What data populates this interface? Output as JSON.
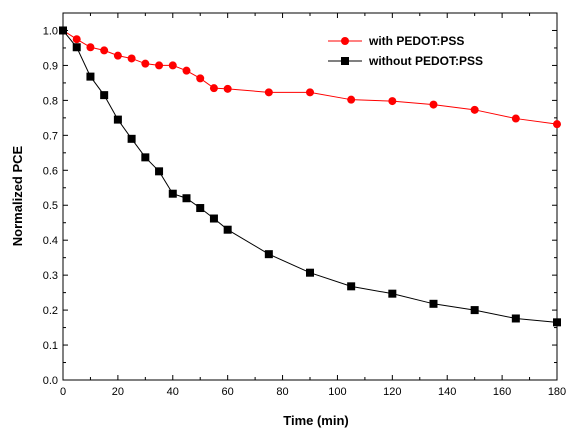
{
  "chart_data": {
    "type": "line",
    "xlabel": "Time (min)",
    "ylabel": "Normalized PCE",
    "xlim": [
      0,
      180
    ],
    "ylim": [
      0.0,
      1.05
    ],
    "xticks": [
      0,
      20,
      40,
      60,
      80,
      100,
      120,
      140,
      160,
      180
    ],
    "yticks": [
      0.0,
      0.1,
      0.2,
      0.3,
      0.4,
      0.5,
      0.6,
      0.7,
      0.8,
      0.9,
      1.0
    ],
    "xtick_labels": [
      "0",
      "20",
      "40",
      "60",
      "80",
      "100",
      "120",
      "140",
      "160",
      "180"
    ],
    "ytick_labels": [
      "0.0",
      "0.1",
      "0.2",
      "0.3",
      "0.4",
      "0.5",
      "0.6",
      "0.7",
      "0.8",
      "0.9",
      "1.0"
    ],
    "grid": false,
    "legend_position": "top-right",
    "series": [
      {
        "name": "with PEDOT:PSS",
        "color": "#ff0000",
        "marker": "circle",
        "x": [
          0,
          5,
          10,
          15,
          20,
          25,
          30,
          35,
          40,
          45,
          50,
          55,
          60,
          75,
          90,
          105,
          120,
          135,
          150,
          165,
          180
        ],
        "y": [
          1.0,
          0.975,
          0.952,
          0.943,
          0.928,
          0.92,
          0.905,
          0.9,
          0.9,
          0.885,
          0.863,
          0.835,
          0.833,
          0.823,
          0.823,
          0.802,
          0.798,
          0.788,
          0.773,
          0.748,
          0.732
        ]
      },
      {
        "name": "without PEDOT:PSS",
        "color": "#000000",
        "marker": "square",
        "x": [
          0,
          5,
          10,
          15,
          20,
          25,
          30,
          35,
          40,
          45,
          50,
          55,
          60,
          75,
          90,
          105,
          120,
          135,
          150,
          165,
          180
        ],
        "y": [
          1.0,
          0.952,
          0.868,
          0.815,
          0.745,
          0.69,
          0.637,
          0.597,
          0.533,
          0.52,
          0.492,
          0.462,
          0.43,
          0.36,
          0.307,
          0.268,
          0.247,
          0.218,
          0.2,
          0.176,
          0.165
        ]
      }
    ]
  }
}
